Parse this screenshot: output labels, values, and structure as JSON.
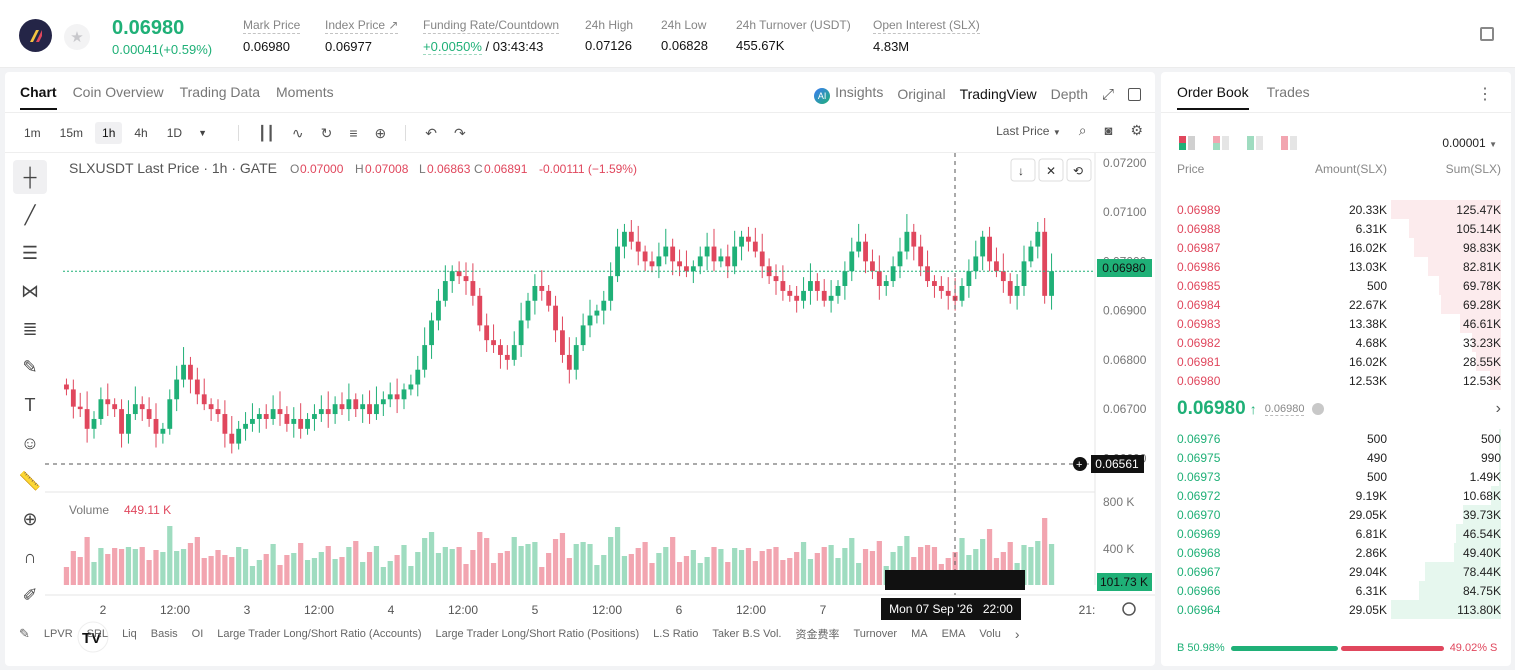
{
  "header": {
    "price": "0.06980",
    "change": "0.00041(+0.59%)",
    "stats": [
      {
        "label": "Mark Price",
        "value": "0.06980"
      },
      {
        "label": "Index Price ↗",
        "value": "0.06977"
      },
      {
        "label": "Funding Rate/Countdown",
        "rate": "+0.0050%",
        "value": " / 03:43:43"
      },
      {
        "label": "24h High",
        "value": "0.07126"
      },
      {
        "label": "24h Low",
        "value": "0.06828"
      },
      {
        "label": "24h Turnover (USDT)",
        "value": "455.67K"
      },
      {
        "label": "Open Interest (SLX)",
        "value": "4.83M"
      }
    ]
  },
  "chart_tabs": [
    "Chart",
    "Coin Overview",
    "Trading Data",
    "Moments"
  ],
  "chart_views": {
    "insights": "Insights",
    "original": "Original",
    "tradingview": "TradingView",
    "depth": "Depth"
  },
  "timeframes": [
    "1m",
    "15m",
    "1h",
    "4h",
    "1D"
  ],
  "active_timeframe": "1h",
  "price_type": "Last Price",
  "legend": {
    "symbol": "SLXUSDT Last Price · 1h · GATE",
    "o_label": "O",
    "o": "0.07000",
    "h_label": "H",
    "h": "0.07008",
    "l_label": "L",
    "l": "0.06863",
    "c_label": "C",
    "c": "0.06891",
    "chg": "-0.00111 (−1.59%)"
  },
  "volume_legend": {
    "label": "Volume",
    "value": "449.11 K"
  },
  "crosshair": {
    "price": "0.06561",
    "time": "Mon 07 Sep '26   22:00"
  },
  "last_price_label": "0.06980",
  "volume_last_label": "101.73 K",
  "bottom_indicators": [
    "LPVR",
    "SRL",
    "Liq",
    "Basis",
    "OI",
    "Large Trader Long/Short Ratio (Accounts)",
    "Large Trader Long/Short Ratio (Positions)",
    "L.S Ratio",
    "Taker B.S Vol.",
    "资金费率",
    "Turnover",
    "MA",
    "EMA",
    "Volu"
  ],
  "chart_data": {
    "type": "candlestick",
    "symbol": "SLXUSDT",
    "interval": "1h",
    "ylim": [
      0.0655,
      0.0722
    ],
    "yticks": [
      "0.07200",
      "0.07100",
      "0.07000",
      "0.06900",
      "0.06800",
      "0.06700",
      "0.06600"
    ],
    "volume_ticks": [
      "800 K",
      "400 K"
    ],
    "xticks": [
      "2",
      "12:00",
      "3",
      "12:00",
      "4",
      "12:00",
      "5",
      "12:00",
      "6",
      "12:00",
      "7",
      "12:00",
      "21:"
    ],
    "closes": [
      0.0674,
      0.06705,
      0.067,
      0.0666,
      0.0668,
      0.0672,
      0.0671,
      0.067,
      0.0665,
      0.0669,
      0.0671,
      0.067,
      0.0668,
      0.0665,
      0.0666,
      0.0672,
      0.0676,
      0.0679,
      0.0676,
      0.0673,
      0.0671,
      0.067,
      0.0669,
      0.0665,
      0.0663,
      0.0666,
      0.0667,
      0.0668,
      0.0669,
      0.0668,
      0.067,
      0.0669,
      0.0667,
      0.0668,
      0.0666,
      0.0668,
      0.0669,
      0.067,
      0.0669,
      0.0671,
      0.067,
      0.0672,
      0.067,
      0.0671,
      0.0669,
      0.0671,
      0.0672,
      0.0673,
      0.0672,
      0.0674,
      0.0675,
      0.0678,
      0.0683,
      0.0688,
      0.0692,
      0.0696,
      0.0698,
      0.0697,
      0.0696,
      0.0693,
      0.0687,
      0.0684,
      0.0683,
      0.0681,
      0.068,
      0.0683,
      0.0688,
      0.0692,
      0.0695,
      0.0694,
      0.0691,
      0.0686,
      0.0681,
      0.0678,
      0.0683,
      0.0687,
      0.0689,
      0.069,
      0.0692,
      0.0697,
      0.0703,
      0.0706,
      0.0704,
      0.0702,
      0.07,
      0.0699,
      0.0701,
      0.0703,
      0.07,
      0.0699,
      0.0698,
      0.0699,
      0.0701,
      0.0703,
      0.07,
      0.0701,
      0.0699,
      0.0703,
      0.0705,
      0.0704,
      0.0702,
      0.0699,
      0.0697,
      0.0696,
      0.0694,
      0.0693,
      0.0692,
      0.0694,
      0.0696,
      0.0694,
      0.0692,
      0.0693,
      0.0695,
      0.0698,
      0.0702,
      0.0704,
      0.07,
      0.0698,
      0.0695,
      0.0696,
      0.0699,
      0.0702,
      0.0706,
      0.0703,
      0.0699,
      0.0696,
      0.0695,
      0.0694,
      0.0693,
      0.0692,
      0.0695,
      0.0698,
      0.0701,
      0.0705,
      0.07,
      0.0698,
      0.0696,
      0.0693,
      0.0695,
      0.07,
      0.0703,
      0.0706,
      0.0693,
      0.0698
    ]
  },
  "orderbook": {
    "tabs": [
      "Order Book",
      "Trades"
    ],
    "precision": "0.00001",
    "headers": {
      "price": "Price",
      "amount": "Amount(SLX)",
      "sum": "Sum(SLX)"
    },
    "asks": [
      {
        "price": "0.06989",
        "amount": "20.33K",
        "sum": "125.47K",
        "depth": 1.0
      },
      {
        "price": "0.06988",
        "amount": "6.31K",
        "sum": "105.14K",
        "depth": 0.84
      },
      {
        "price": "0.06987",
        "amount": "16.02K",
        "sum": "98.83K",
        "depth": 0.79
      },
      {
        "price": "0.06986",
        "amount": "13.03K",
        "sum": "82.81K",
        "depth": 0.66
      },
      {
        "price": "0.06985",
        "amount": "500",
        "sum": "69.78K",
        "depth": 0.56
      },
      {
        "price": "0.06984",
        "amount": "22.67K",
        "sum": "69.28K",
        "depth": 0.55
      },
      {
        "price": "0.06983",
        "amount": "13.38K",
        "sum": "46.61K",
        "depth": 0.37
      },
      {
        "price": "0.06982",
        "amount": "4.68K",
        "sum": "33.23K",
        "depth": 0.26
      },
      {
        "price": "0.06981",
        "amount": "16.02K",
        "sum": "28.55K",
        "depth": 0.23
      },
      {
        "price": "0.06980",
        "amount": "12.53K",
        "sum": "12.53K",
        "depth": 0.1
      }
    ],
    "mid": {
      "price": "0.06980",
      "mark": "0.06980"
    },
    "bids": [
      {
        "price": "0.06976",
        "amount": "500",
        "sum": "500",
        "depth": 0.004
      },
      {
        "price": "0.06975",
        "amount": "490",
        "sum": "990",
        "depth": 0.009
      },
      {
        "price": "0.06973",
        "amount": "500",
        "sum": "1.49K",
        "depth": 0.013
      },
      {
        "price": "0.06972",
        "amount": "9.19K",
        "sum": "10.68K",
        "depth": 0.09
      },
      {
        "price": "0.06970",
        "amount": "29.05K",
        "sum": "39.73K",
        "depth": 0.35
      },
      {
        "price": "0.06969",
        "amount": "6.81K",
        "sum": "46.54K",
        "depth": 0.41
      },
      {
        "price": "0.06968",
        "amount": "2.86K",
        "sum": "49.40K",
        "depth": 0.43
      },
      {
        "price": "0.06967",
        "amount": "29.04K",
        "sum": "78.44K",
        "depth": 0.69
      },
      {
        "price": "0.06966",
        "amount": "6.31K",
        "sum": "84.75K",
        "depth": 0.75
      },
      {
        "price": "0.06964",
        "amount": "29.05K",
        "sum": "113.80K",
        "depth": 1.0
      }
    ],
    "ratio": {
      "buy_label": "B 50.98%",
      "sell_label": "49.02% S",
      "buy": 0.5098
    }
  },
  "colors": {
    "up": "#1fb077",
    "down": "#e0475d",
    "vol_up": "#9fdcc0",
    "vol_down": "#f2a5b0"
  }
}
